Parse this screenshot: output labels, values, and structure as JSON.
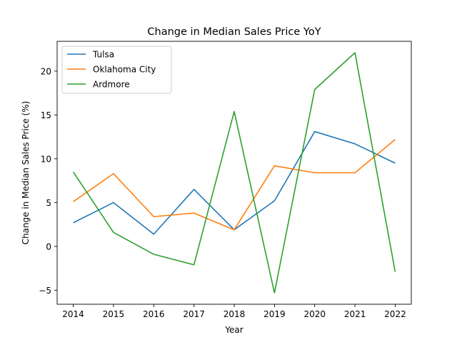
{
  "chart_data": {
    "type": "line",
    "title": "Change in Median Sales Price YoY",
    "xlabel": "Year",
    "ylabel": "Change in Median Sales Price (%)",
    "x": [
      2014,
      2015,
      2016,
      2017,
      2018,
      2019,
      2020,
      2021,
      2022
    ],
    "xticks": [
      "2014",
      "2015",
      "2016",
      "2017",
      "2018",
      "2019",
      "2020",
      "2021",
      "2022"
    ],
    "yticks": [
      -5,
      0,
      5,
      10,
      15,
      20
    ],
    "ytick_labels": [
      "−5",
      "0",
      "5",
      "10",
      "15",
      "20"
    ],
    "xlim": [
      2013.6,
      2022.4
    ],
    "ylim": [
      -6.6,
      23.4
    ],
    "grid": false,
    "legend_position": "top-left",
    "series": [
      {
        "name": "Tulsa",
        "color": "#1f77b4",
        "values": [
          2.7,
          5.0,
          1.4,
          6.5,
          1.9,
          5.2,
          13.1,
          11.7,
          9.5
        ]
      },
      {
        "name": "Oklahoma City",
        "color": "#ff7f0e",
        "values": [
          5.1,
          8.3,
          3.4,
          3.8,
          1.9,
          9.2,
          8.4,
          8.4,
          12.2
        ]
      },
      {
        "name": "Ardmore",
        "color": "#2ca02c",
        "values": [
          8.5,
          1.6,
          -0.9,
          -2.1,
          15.4,
          -5.3,
          17.9,
          22.1,
          -2.9
        ]
      }
    ]
  }
}
